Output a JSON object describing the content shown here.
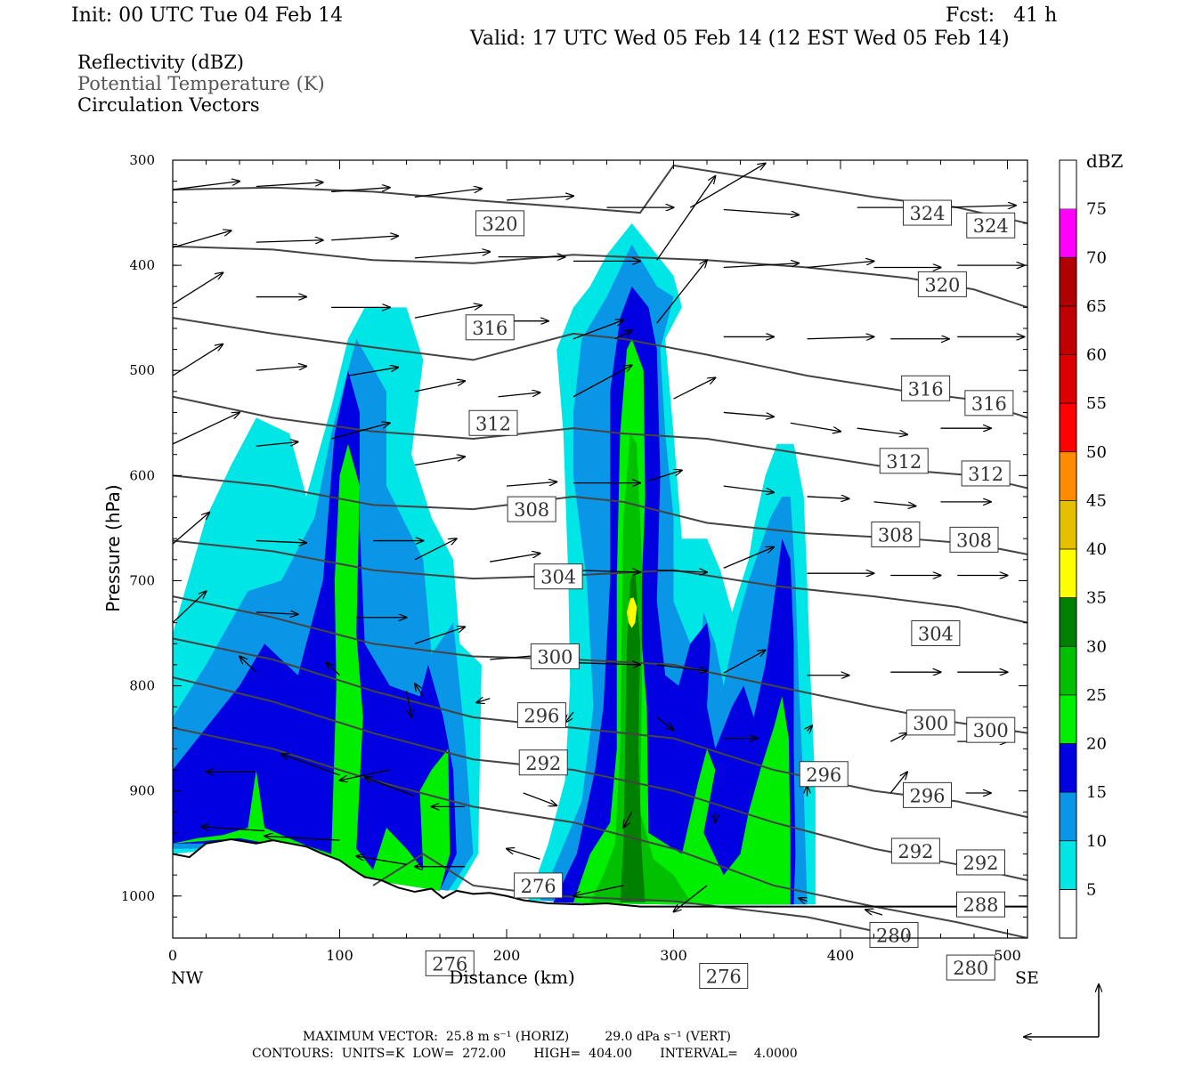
{
  "header": {
    "init": "Init: 00 UTC Tue 04 Feb 14",
    "fcst": "Fcst:   41 h",
    "valid": "Valid: 17 UTC Wed 05 Feb 14 (12 EST Wed 05 Feb 14)"
  },
  "legend_lines": {
    "reflectivity": "Reflectivity (dBZ)",
    "theta": "Potential Temperature (K)",
    "vectors": "Circulation Vectors"
  },
  "footer": {
    "max_vector": "MAXIMUM VECTOR:  25.8 m s⁻¹ (HORIZ)         29.0 dPa s⁻¹ (VERT)",
    "contours": "CONTOURS:  UNITS=K  LOW=  272.00       HIGH=  404.00       INTERVAL=    4.0000"
  },
  "colors": {
    "c5": "#00e5e5",
    "c10": "#0a96e6",
    "c15": "#0000e0",
    "c20": "#00ee00",
    "c25": "#00c000",
    "c30": "#008000",
    "c35": "#ffff00",
    "c40": "#e6c000",
    "c45": "#ff8c00",
    "c50": "#ff0000",
    "c55": "#dd0000",
    "c60": "#c00000",
    "c65": "#b00000",
    "c70": "#ff00ff",
    "c75": "#9a58c6",
    "contour": "#444444"
  },
  "chart_data": {
    "type": "heatmap",
    "xlabel": "Distance (km)",
    "ylabel": "Pressure (hPa)",
    "xlim": [
      0,
      512
    ],
    "ylim": [
      1040,
      300
    ],
    "x_ticks": [
      "0",
      "100",
      "200",
      "300",
      "400",
      "500"
    ],
    "y_ticks": [
      "300",
      "400",
      "500",
      "600",
      "700",
      "800",
      "900",
      "1000"
    ],
    "x_end_labels": {
      "left": "NW",
      "right": "SE"
    },
    "colorbar": {
      "title": "dBZ",
      "levels": [
        "5",
        "10",
        "15",
        "20",
        "25",
        "30",
        "35",
        "40",
        "45",
        "50",
        "55",
        "60",
        "65",
        "70",
        "75"
      ]
    },
    "contour_labels": [
      {
        "t": "324",
        "x": 452,
        "p": 350
      },
      {
        "t": "324",
        "x": 490,
        "p": 362
      },
      {
        "t": "320",
        "x": 196,
        "p": 360
      },
      {
        "t": "320",
        "x": 461,
        "p": 418
      },
      {
        "t": "316",
        "x": 190,
        "p": 459
      },
      {
        "t": "316",
        "x": 451,
        "p": 517
      },
      {
        "t": "316",
        "x": 489,
        "p": 531
      },
      {
        "t": "312",
        "x": 192,
        "p": 550
      },
      {
        "t": "312",
        "x": 438,
        "p": 586
      },
      {
        "t": "312",
        "x": 487,
        "p": 598
      },
      {
        "t": "308",
        "x": 215,
        "p": 632
      },
      {
        "t": "308",
        "x": 433,
        "p": 656
      },
      {
        "t": "308",
        "x": 480,
        "p": 661
      },
      {
        "t": "304",
        "x": 231,
        "p": 696
      },
      {
        "t": "304",
        "x": 457,
        "p": 750
      },
      {
        "t": "300",
        "x": 229,
        "p": 772
      },
      {
        "t": "300",
        "x": 454,
        "p": 835
      },
      {
        "t": "300",
        "x": 490,
        "p": 842
      },
      {
        "t": "296",
        "x": 221,
        "p": 828
      },
      {
        "t": "296",
        "x": 390,
        "p": 884
      },
      {
        "t": "296",
        "x": 452,
        "p": 904
      },
      {
        "t": "292",
        "x": 222,
        "p": 873
      },
      {
        "t": "292",
        "x": 445,
        "p": 957
      },
      {
        "t": "292",
        "x": 484,
        "p": 968
      },
      {
        "t": "288",
        "x": 484,
        "p": 1008
      },
      {
        "t": "280",
        "x": 432,
        "p": 1037
      },
      {
        "t": "280",
        "x": 478,
        "p": 1068
      },
      {
        "t": "276",
        "x": 219,
        "p": 990
      },
      {
        "t": "276",
        "x": 166,
        "p": 1064
      },
      {
        "t": "276",
        "x": 330,
        "p": 1076
      }
    ],
    "vectors_max": {
      "horizontal": "25.8 m s-1",
      "vertical": "29.0 dPa s-1"
    },
    "contour_range": {
      "units": "K",
      "low": 272.0,
      "high": 404.0,
      "interval": 4.0
    }
  }
}
